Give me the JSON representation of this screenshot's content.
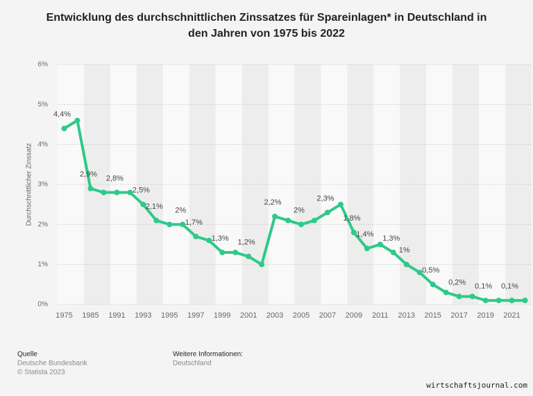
{
  "chart_data": {
    "type": "line",
    "title": "Entwicklung des durchschnittlichen Zinssatzes für Spareinlagen* in Deutschland in",
    "subtitle": "den Jahren von 1975 bis 2022",
    "y_label": "Durchschnittlicher Zinssatz",
    "categories": [
      "1975",
      null,
      "1985",
      null,
      "1991",
      null,
      "1993",
      null,
      "1995",
      null,
      "1997",
      null,
      "1999",
      null,
      "2001",
      null,
      "2003",
      null,
      "2005",
      null,
      "2007",
      null,
      "2009",
      null,
      "2011",
      null,
      "2013",
      null,
      "2015",
      null,
      "2017",
      null,
      "2019",
      null,
      "2021",
      null
    ],
    "series": [
      {
        "color": "#2fc98a",
        "values": [
          4.4,
          4.6,
          2.9,
          2.8,
          2.8,
          2.8,
          2.5,
          2.1,
          2.0,
          2.0,
          1.7,
          1.6,
          1.3,
          1.3,
          1.2,
          1.0,
          2.2,
          2.1,
          2.0,
          2.1,
          2.3,
          2.5,
          1.8,
          1.4,
          1.5,
          1.3,
          1.0,
          0.8,
          0.5,
          0.3,
          0.2,
          0.2,
          0.1,
          0.1,
          0.1,
          0.1
        ],
        "value_labels": [
          "4,4%",
          null,
          "2,9%",
          null,
          "2,8%",
          null,
          "2,5%",
          "2,1%",
          null,
          "2%",
          "1,7%",
          null,
          "1,3%",
          null,
          "1,2%",
          null,
          "2,2%",
          null,
          "2%",
          null,
          "2,3%",
          null,
          "1,8%",
          "1,4%",
          null,
          "1,3%",
          "1%",
          null,
          "0,5%",
          null,
          "0,2%",
          null,
          "0,1%",
          null,
          "0,1%",
          null
        ]
      }
    ],
    "ylim": [
      0,
      6
    ],
    "yticks": [
      {
        "value": 0,
        "label": "0%"
      },
      {
        "value": 1,
        "label": "1%"
      },
      {
        "value": 2,
        "label": "2%"
      },
      {
        "value": 3,
        "label": "3%"
      },
      {
        "value": 4,
        "label": "4%"
      },
      {
        "value": 5,
        "label": "5%"
      },
      {
        "value": 6,
        "label": "6%"
      }
    ],
    "grid": true
  },
  "footer": {
    "source_heading": "Quelle",
    "source": "Deutsche Bundesbank",
    "copyright": "© Statista 2023",
    "info_heading": "Weitere Informationen:",
    "info": "Deutschland",
    "watermark": "wirtschaftsjournal.com"
  }
}
